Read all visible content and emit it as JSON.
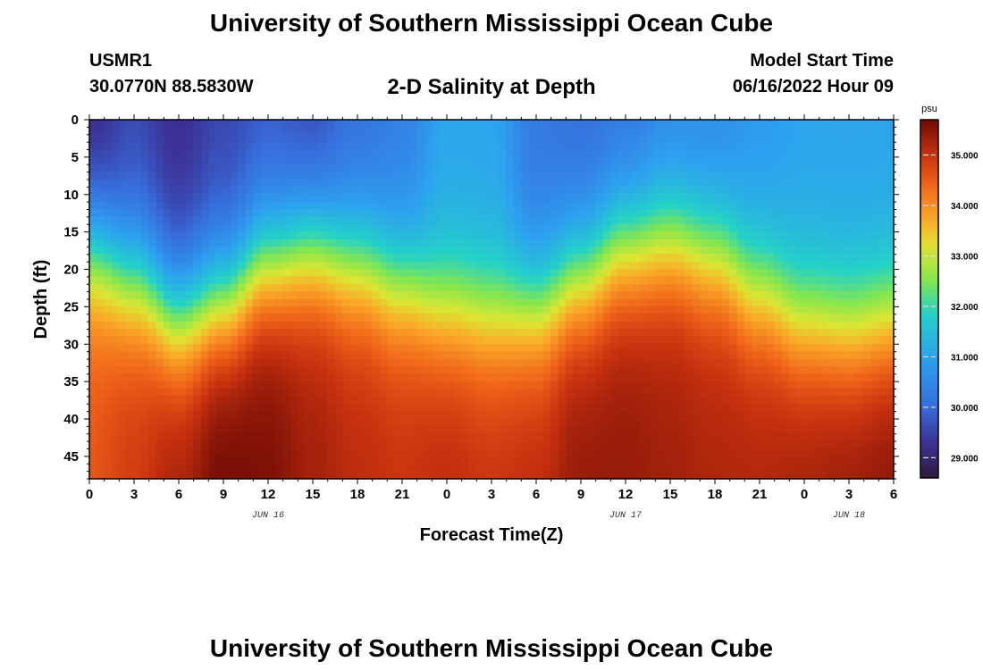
{
  "header": {
    "title": "University of Southern Mississippi Ocean Cube",
    "station": "USMR1",
    "coordinates": "30.0770N  88.5830W",
    "subtitle": "2-D Salinity at Depth",
    "model_start_label": "Model Start Time",
    "model_start_value": "06/16/2022 Hour 09"
  },
  "footer": {
    "title": "University of Southern Mississippi Ocean Cube"
  },
  "chart_data": {
    "type": "heatmap",
    "title": "2-D Salinity at Depth",
    "xlabel": "Forecast Time(Z)",
    "ylabel": "Depth (ft)",
    "x_hours_range": [
      0,
      54
    ],
    "xticks": [
      "0",
      "3",
      "6",
      "9",
      "12",
      "15",
      "18",
      "21",
      "0",
      "3",
      "6",
      "9",
      "12",
      "15",
      "18",
      "21",
      "0",
      "3",
      "6"
    ],
    "date_labels": [
      {
        "text": "JUN 16",
        "hour": 12
      },
      {
        "text": "JUN 17",
        "hour": 36
      },
      {
        "text": "JUN 18",
        "hour": 51
      }
    ],
    "yticks": [
      0,
      5,
      10,
      15,
      20,
      25,
      30,
      35,
      40,
      45
    ],
    "ylim": [
      0,
      48
    ],
    "colorbar": {
      "unit": "psu",
      "range": [
        28.6,
        35.7
      ],
      "ticks": [
        "29.000",
        "30.000",
        "31.000",
        "32.000",
        "33.000",
        "34.000",
        "35.000"
      ]
    },
    "surface_salinity_psu": [
      29.0,
      29.5,
      29.2,
      29.5,
      29.7,
      29.5,
      30.0,
      30.3,
      31.0,
      31.0,
      30.2,
      30.0,
      30.1,
      30.4,
      30.5,
      30.8,
      31.0,
      31.0,
      31.0
    ],
    "halocline_depth_ft": [
      17,
      21,
      26,
      24,
      19,
      17,
      19,
      22,
      25,
      26,
      25,
      21,
      17,
      16,
      18,
      23,
      27,
      28,
      27
    ],
    "bottom_salinity_psu": [
      34.6,
      34.9,
      35.3,
      35.7,
      35.6,
      35.3,
      35.1,
      35.0,
      35.1,
      35.0,
      35.1,
      35.4,
      35.4,
      35.3,
      35.2,
      35.2,
      35.3,
      35.4,
      35.5
    ]
  }
}
